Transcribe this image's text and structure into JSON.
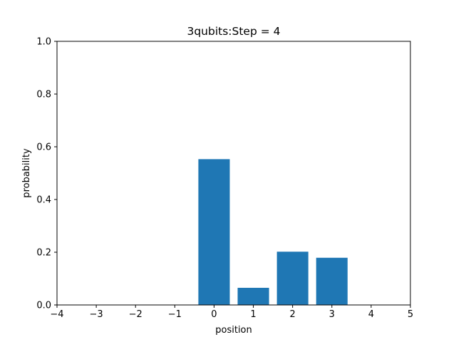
{
  "chart_data": {
    "type": "bar",
    "title": "3qubits:Step = 4",
    "xlabel": "position",
    "ylabel": "probability",
    "xlim": [
      -4,
      5
    ],
    "ylim": [
      0,
      1.0
    ],
    "x_ticks": [
      -4,
      -3,
      -2,
      -1,
      0,
      1,
      2,
      3,
      4,
      5
    ],
    "x_tick_labels": [
      "−4",
      "−3",
      "−2",
      "−1",
      "0",
      "1",
      "2",
      "3",
      "4",
      "5"
    ],
    "y_ticks": [
      0,
      0.2,
      0.4,
      0.6,
      0.8,
      1.0
    ],
    "y_tick_labels": [
      "0.0",
      "0.2",
      "0.4",
      "0.6",
      "0.8",
      "1.0"
    ],
    "bar_width": 0.8,
    "x": [
      0,
      1,
      2,
      3
    ],
    "values": [
      0.553,
      0.065,
      0.202,
      0.179
    ],
    "color": "#1f77b4",
    "grid": false,
    "legend": "none"
  }
}
